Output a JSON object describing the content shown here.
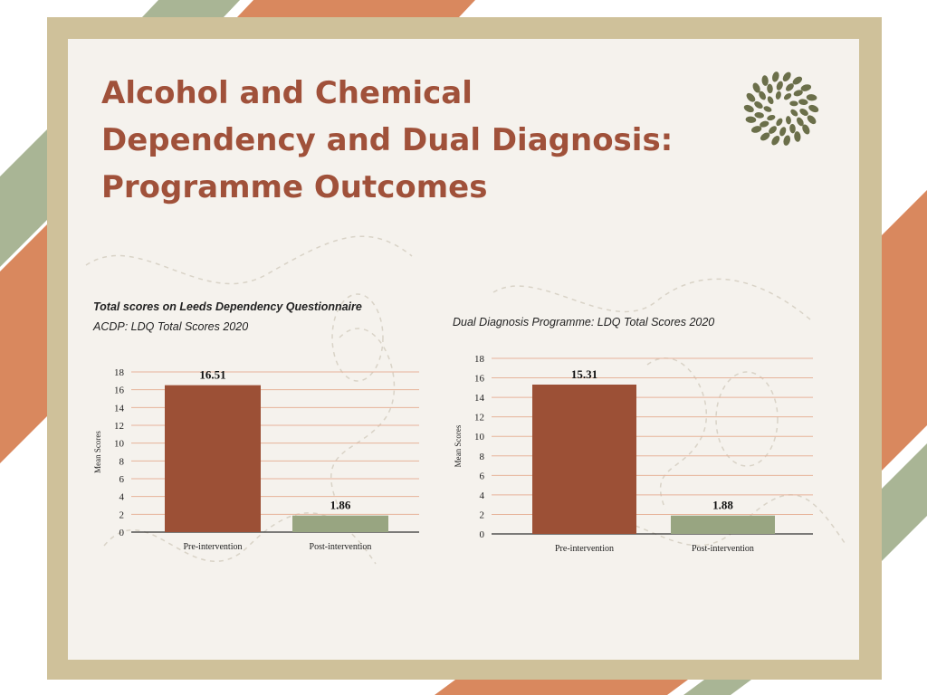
{
  "slide": {
    "title_lines": [
      "Alcohol and Chemical",
      "Dependency and Dual Diagnosis:",
      "Programme Outcomes"
    ],
    "colors": {
      "title": "#a0513a",
      "frame": "#cfc19a",
      "card": "#f5f2ed",
      "accent_green": "#9aa888",
      "accent_orange": "#d9885e",
      "logo": "#6b6f4a"
    },
    "logo_icon": "leaf-wreath-icon"
  },
  "chart_data": [
    {
      "type": "bar",
      "heading": "Total scores on Leeds Dependency Questionnaire",
      "title": "ACDP: LDQ Total Scores 2020",
      "xlabel": "",
      "ylabel": "Mean Scores",
      "ylim": [
        0,
        18
      ],
      "yticks": [
        0,
        2,
        4,
        6,
        8,
        10,
        12,
        14,
        16,
        18
      ],
      "categories": [
        "Pre-intervention",
        "Post-intervention"
      ],
      "values": [
        16.51,
        1.86
      ],
      "value_labels": [
        "16.51",
        "1.86"
      ],
      "bar_colors": [
        "#9c5036",
        "#98a581"
      ],
      "grid": true
    },
    {
      "type": "bar",
      "heading": "",
      "title": "Dual Diagnosis Programme: LDQ Total Scores 2020",
      "xlabel": "",
      "ylabel": "Mean Scores",
      "ylim": [
        0,
        18
      ],
      "yticks": [
        0,
        2,
        4,
        6,
        8,
        10,
        12,
        14,
        16,
        18
      ],
      "categories": [
        "Pre-intervention",
        "Post-intervention"
      ],
      "values": [
        15.31,
        1.88
      ],
      "value_labels": [
        "15.31",
        "1.88"
      ],
      "bar_colors": [
        "#9c5036",
        "#98a581"
      ],
      "grid": true
    }
  ]
}
